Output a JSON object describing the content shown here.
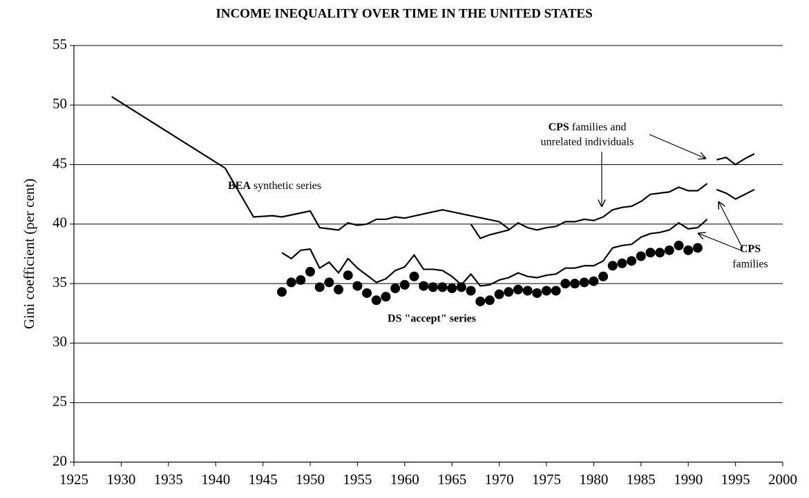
{
  "chart_data": {
    "type": "line",
    "title": "INCOME INEQUALITY OVER TIME IN THE UNITED STATES",
    "y_label": "Gini coefficient (per cent)",
    "xlim": [
      1925,
      2000
    ],
    "xticks": [
      1925,
      1930,
      1935,
      1940,
      1945,
      1950,
      1955,
      1960,
      1965,
      1970,
      1975,
      1980,
      1985,
      1990,
      1995,
      2000
    ],
    "ylim": [
      20,
      55
    ],
    "yticks": [
      20,
      25,
      30,
      35,
      40,
      45,
      50,
      55
    ],
    "grid": true,
    "series": [
      {
        "color": "#000000",
        "marker": "none",
        "x": [
          [
            1929,
            1941,
            1944,
            1946,
            1947,
            1950,
            1951,
            1952,
            1953,
            1954,
            1955,
            1956,
            1957,
            1958,
            1959,
            1960,
            1964,
            1970,
            1971
          ]
        ],
        "values": [
          [
            50.7,
            44.7,
            40.6,
            40.7,
            40.6,
            41.1,
            39.7,
            39.6,
            39.5,
            40.1,
            39.9,
            40.0,
            40.4,
            40.4,
            40.6,
            40.5,
            41.2,
            40.2,
            39.6
          ]
        ]
      },
      {
        "color": "#000000",
        "marker": "none",
        "x": [
          [
            1967,
            1968,
            1969,
            1970,
            1971,
            1972,
            1973,
            1974,
            1975,
            1976,
            1977,
            1978,
            1979,
            1980,
            1981,
            1982,
            1983,
            1984,
            1985,
            1986,
            1987,
            1988,
            1989,
            1990,
            1991,
            1992
          ],
          [
            1993,
            1994,
            1995,
            1996,
            1997
          ]
        ],
        "values": [
          [
            40.0,
            38.8,
            39.1,
            39.3,
            39.5,
            40.1,
            39.7,
            39.5,
            39.7,
            39.8,
            40.2,
            40.2,
            40.4,
            40.3,
            40.6,
            41.2,
            41.4,
            41.5,
            41.9,
            42.5,
            42.6,
            42.7,
            43.1,
            42.8,
            42.8,
            43.4
          ],
          [
            45.4,
            45.6,
            45.0,
            45.5,
            45.9
          ]
        ]
      },
      {
        "color": "#000000",
        "marker": "none",
        "x": [
          [
            1947,
            1948,
            1949,
            1950,
            1951,
            1952,
            1953,
            1954,
            1955,
            1956,
            1957,
            1958,
            1959,
            1960,
            1961,
            1962,
            1963,
            1964,
            1965,
            1966,
            1967,
            1968,
            1969,
            1970,
            1971,
            1972,
            1973,
            1974,
            1975,
            1976,
            1977,
            1978,
            1979,
            1980,
            1981,
            1982,
            1983,
            1984,
            1985,
            1986,
            1987,
            1988,
            1989,
            1990,
            1991,
            1992
          ],
          [
            1993,
            1994,
            1995,
            1996,
            1997
          ]
        ],
        "values": [
          [
            37.6,
            37.1,
            37.8,
            37.9,
            36.3,
            36.8,
            35.9,
            37.1,
            36.3,
            35.7,
            35.1,
            35.4,
            36.1,
            36.4,
            37.4,
            36.2,
            36.2,
            36.1,
            35.6,
            34.9,
            35.8,
            34.8,
            34.9,
            35.3,
            35.5,
            35.9,
            35.6,
            35.5,
            35.7,
            35.8,
            36.3,
            36.3,
            36.5,
            36.5,
            36.9,
            38.0,
            38.2,
            38.3,
            38.9,
            39.2,
            39.3,
            39.5,
            40.1,
            39.6,
            39.7,
            40.4
          ],
          [
            42.9,
            42.6,
            42.1,
            42.5,
            42.9
          ]
        ]
      },
      {
        "color": "#000000",
        "marker": "circle",
        "x": [
          [
            1947,
            1948,
            1949,
            1950,
            1951,
            1952,
            1953,
            1954,
            1955,
            1956,
            1957,
            1958,
            1959,
            1960,
            1961,
            1962,
            1963,
            1964,
            1965,
            1966,
            1967,
            1968,
            1969,
            1970,
            1971,
            1972,
            1973,
            1974,
            1975,
            1976,
            1977,
            1978,
            1979,
            1980,
            1981,
            1982,
            1983,
            1984,
            1985,
            1986,
            1987,
            1988,
            1989,
            1990,
            1991
          ]
        ],
        "values": [
          [
            34.3,
            35.1,
            35.3,
            36.0,
            34.7,
            35.1,
            34.5,
            35.7,
            34.8,
            34.2,
            33.6,
            33.9,
            34.6,
            34.9,
            35.6,
            34.8,
            34.7,
            34.7,
            34.6,
            34.7,
            34.4,
            33.5,
            33.6,
            34.1,
            34.3,
            34.5,
            34.4,
            34.2,
            34.4,
            34.4,
            35.0,
            35.0,
            35.1,
            35.2,
            35.6,
            36.5,
            36.7,
            36.9,
            37.3,
            37.6,
            37.6,
            37.8,
            38.2,
            37.8,
            38.0
          ]
        ]
      }
    ],
    "annotations": [
      {
        "lines": [
          "BEA synthetic series"
        ]
      },
      {
        "lines": [
          "CPS families and",
          "unrelated individuals"
        ]
      },
      {
        "lines": [
          "CPS",
          "families"
        ]
      },
      {
        "lines": [
          "DS \"accept\" series"
        ]
      }
    ]
  }
}
